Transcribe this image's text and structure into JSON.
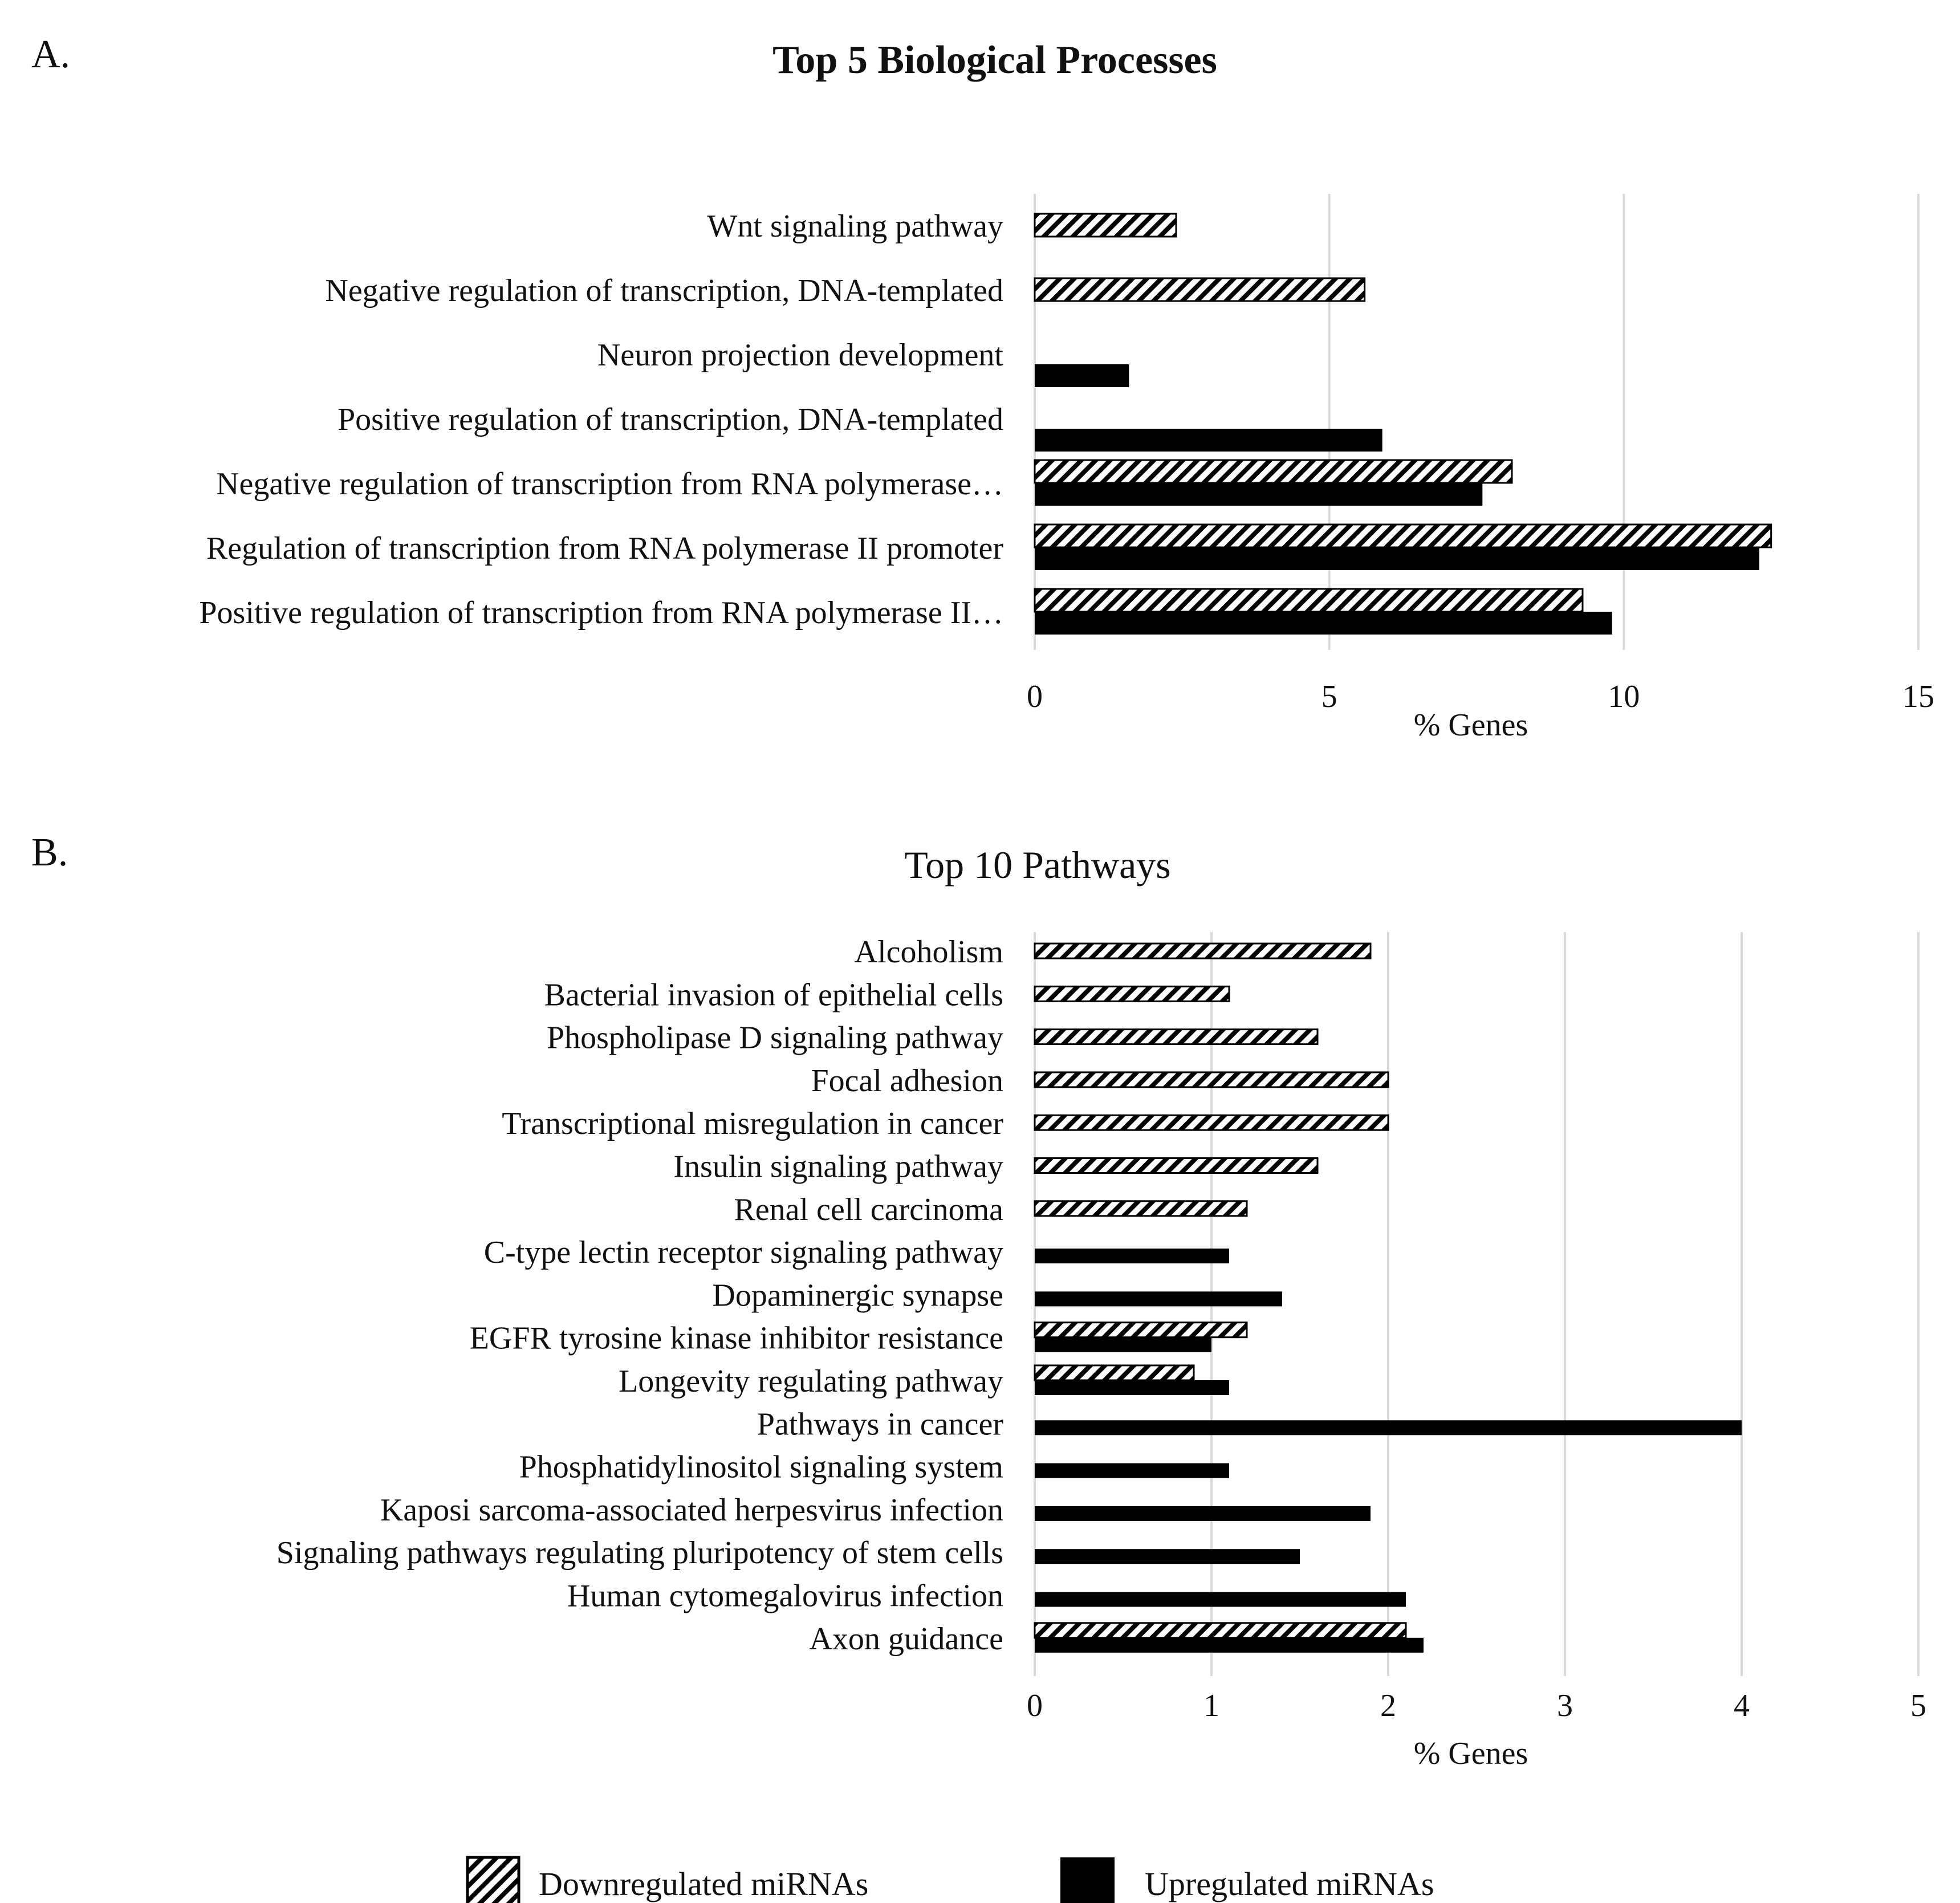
{
  "colors": {
    "up": "#000000",
    "down_stripe": "#000000",
    "grid": "#d9d9d9",
    "background": "#ffffff"
  },
  "legend": {
    "downregulated": "Downregulated miRNAs",
    "upregulated": "Upregulated miRNAs"
  },
  "chart_data": [
    {
      "panel": "A.",
      "type": "bar",
      "orientation": "horizontal",
      "title": "Top 5 Biological Processes",
      "xlabel": "% Genes",
      "xlim": [
        0,
        15
      ],
      "xticks": [
        "0",
        "5",
        "10",
        "15"
      ],
      "categories": [
        "Wnt signaling pathway",
        "Negative regulation of transcription, DNA-templated",
        "Neuron projection development",
        "Positive regulation of transcription, DNA-templated",
        "Negative regulation of transcription from RNA polymerase…",
        "Regulation of transcription from RNA polymerase II promoter",
        "Positive regulation of transcription from RNA polymerase II…"
      ],
      "series": [
        {
          "name": "Downregulated miRNAs",
          "values": [
            2.4,
            5.6,
            null,
            null,
            8.1,
            12.5,
            9.3
          ]
        },
        {
          "name": "Upregulated miRNAs",
          "values": [
            null,
            null,
            1.6,
            5.9,
            7.6,
            12.3,
            9.8
          ]
        }
      ]
    },
    {
      "panel": "B.",
      "type": "bar",
      "orientation": "horizontal",
      "title": "Top 10 Pathways",
      "xlabel": "% Genes",
      "xlim": [
        0,
        5
      ],
      "xticks": [
        "0",
        "1",
        "2",
        "3",
        "4",
        "5"
      ],
      "categories": [
        "Alcoholism",
        "Bacterial invasion of epithelial cells",
        "Phospholipase D signaling pathway",
        "Focal adhesion",
        "Transcriptional misregulation in cancer",
        "Insulin signaling pathway",
        "Renal cell carcinoma",
        "C-type lectin receptor signaling pathway",
        "Dopaminergic synapse",
        "EGFR tyrosine kinase inhibitor resistance",
        "Longevity regulating pathway",
        "Pathways in cancer",
        "Phosphatidylinositol signaling system",
        "Kaposi sarcoma-associated herpesvirus infection",
        "Signaling pathways regulating pluripotency of stem cells",
        "Human cytomegalovirus infection",
        "Axon guidance"
      ],
      "series": [
        {
          "name": "Downregulated miRNAs",
          "values": [
            1.9,
            1.1,
            1.6,
            2.0,
            2.0,
            1.6,
            1.2,
            null,
            null,
            1.2,
            0.9,
            null,
            null,
            null,
            null,
            null,
            2.1
          ]
        },
        {
          "name": "Upregulated miRNAs",
          "values": [
            null,
            null,
            null,
            null,
            null,
            null,
            null,
            1.1,
            1.4,
            1.0,
            1.1,
            4.0,
            1.1,
            1.9,
            1.5,
            2.1,
            2.2
          ]
        }
      ]
    }
  ]
}
